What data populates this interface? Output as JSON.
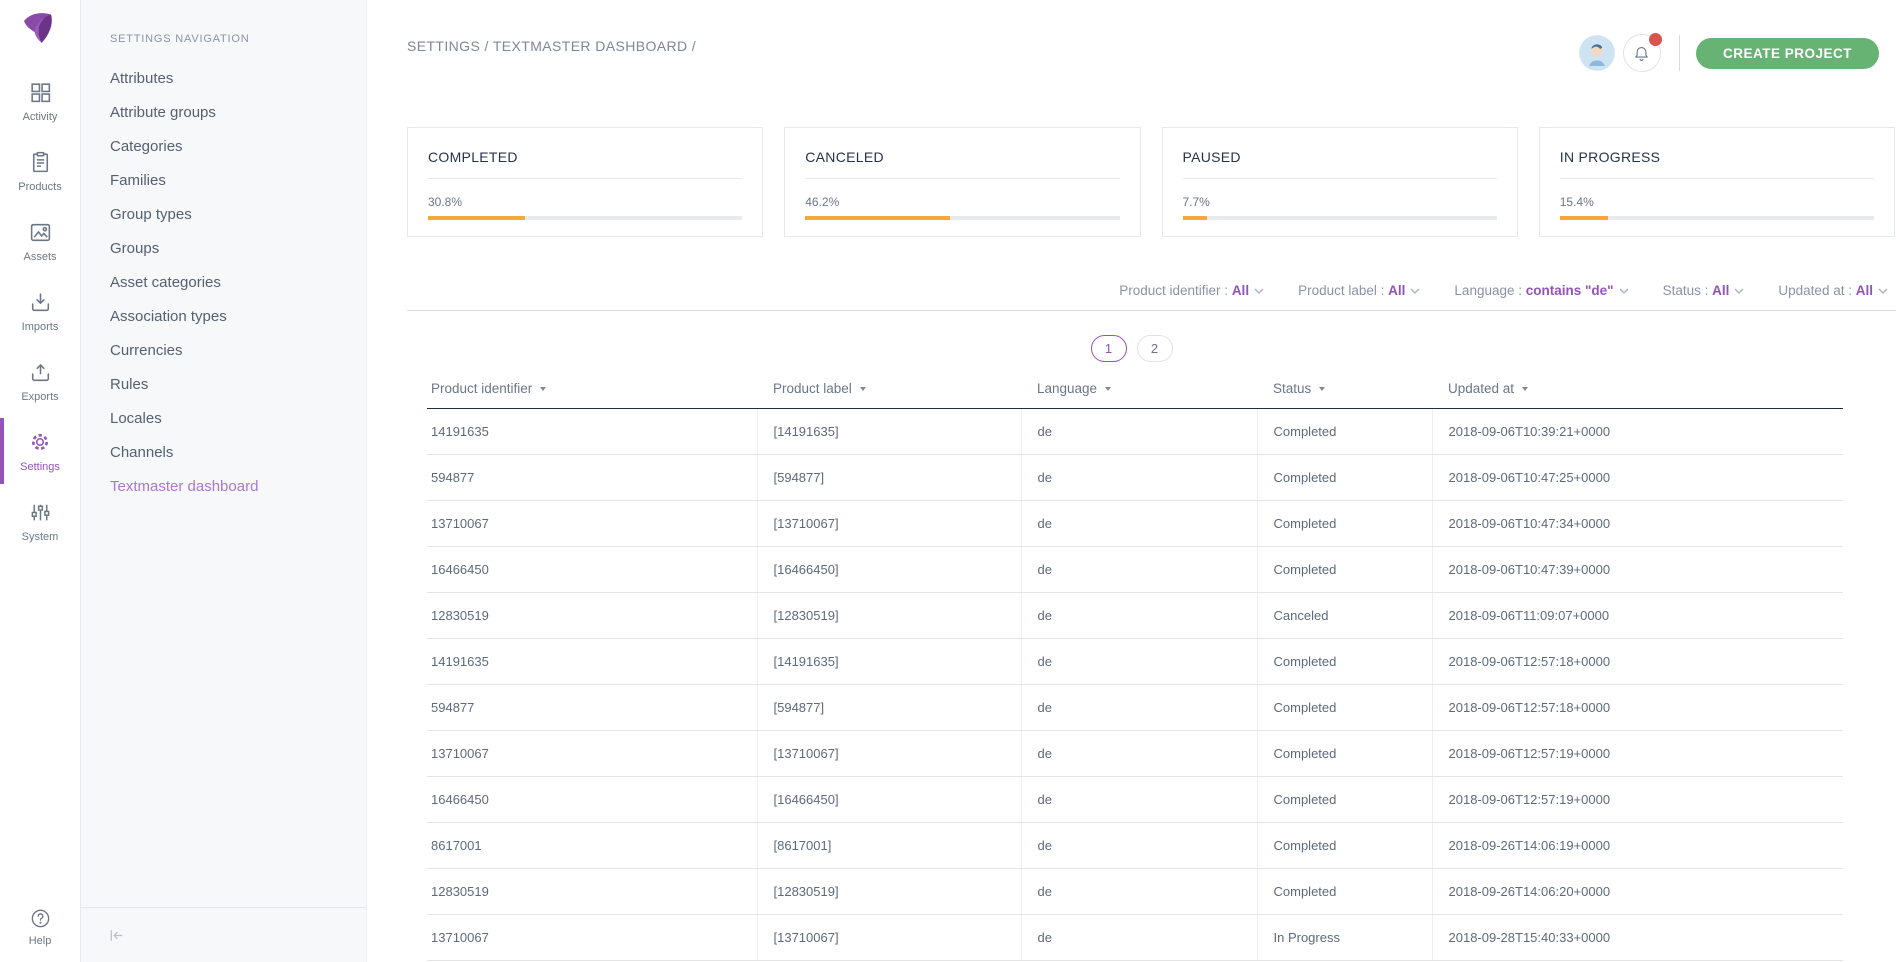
{
  "colors": {
    "accent_purple": "#9452BA",
    "active_link_purple": "#AC77CC",
    "create_button_green": "#67B373",
    "progress_orange": "#F5A93B",
    "notification_red": "#D9534F",
    "table_header_line": "#1F2C44"
  },
  "iconbar": {
    "items": [
      {
        "label": "Activity",
        "icon": "grid-icon",
        "active": false
      },
      {
        "label": "Products",
        "icon": "clipboard-icon",
        "active": false
      },
      {
        "label": "Assets",
        "icon": "image-icon",
        "active": false
      },
      {
        "label": "Imports",
        "icon": "import-icon",
        "active": false
      },
      {
        "label": "Exports",
        "icon": "export-icon",
        "active": false
      },
      {
        "label": "Settings",
        "icon": "gear-icon",
        "active": true
      },
      {
        "label": "System",
        "icon": "sliders-icon",
        "active": false
      }
    ],
    "help": {
      "label": "Help",
      "icon": "question-icon"
    }
  },
  "settings_nav": {
    "title": "SETTINGS NAVIGATION",
    "items": [
      "Attributes",
      "Attribute groups",
      "Categories",
      "Families",
      "Group types",
      "Groups",
      "Asset categories",
      "Association types",
      "Currencies",
      "Rules",
      "Locales",
      "Channels",
      "Textmaster dashboard"
    ],
    "active_item": "Textmaster dashboard"
  },
  "header": {
    "breadcrumb": "SETTINGS / TEXTMASTER DASHBOARD /",
    "create_project_label": "CREATE PROJECT",
    "notification_badge": true
  },
  "stat_cards": [
    {
      "title": "COMPLETED",
      "value": "30.8%",
      "percent": 30.8
    },
    {
      "title": "CANCELED",
      "value": "46.2%",
      "percent": 46.2
    },
    {
      "title": "PAUSED",
      "value": "7.7%",
      "percent": 7.7
    },
    {
      "title": "IN PROGRESS",
      "value": "15.4%",
      "percent": 15.4
    }
  ],
  "filters": [
    {
      "label": "Product identifier",
      "value": "All"
    },
    {
      "label": "Product label",
      "value": "All"
    },
    {
      "label": "Language",
      "value": "contains \"de\""
    },
    {
      "label": "Status",
      "value": "All"
    },
    {
      "label": "Updated at",
      "value": "All"
    }
  ],
  "pagination": {
    "pages": [
      "1",
      "2"
    ],
    "current": "1"
  },
  "table": {
    "columns": [
      "Product identifier",
      "Product label",
      "Language",
      "Status",
      "Updated at"
    ],
    "rows": [
      [
        "14191635",
        "[14191635]",
        "de",
        "Completed",
        "2018-09-06T10:39:21+0000"
      ],
      [
        "594877",
        "[594877]",
        "de",
        "Completed",
        "2018-09-06T10:47:25+0000"
      ],
      [
        "13710067",
        "[13710067]",
        "de",
        "Completed",
        "2018-09-06T10:47:34+0000"
      ],
      [
        "16466450",
        "[16466450]",
        "de",
        "Completed",
        "2018-09-06T10:47:39+0000"
      ],
      [
        "12830519",
        "[12830519]",
        "de",
        "Canceled",
        "2018-09-06T11:09:07+0000"
      ],
      [
        "14191635",
        "[14191635]",
        "de",
        "Completed",
        "2018-09-06T12:57:18+0000"
      ],
      [
        "594877",
        "[594877]",
        "de",
        "Completed",
        "2018-09-06T12:57:18+0000"
      ],
      [
        "13710067",
        "[13710067]",
        "de",
        "Completed",
        "2018-09-06T12:57:19+0000"
      ],
      [
        "16466450",
        "[16466450]",
        "de",
        "Completed",
        "2018-09-06T12:57:19+0000"
      ],
      [
        "8617001",
        "[8617001]",
        "de",
        "Completed",
        "2018-09-26T14:06:19+0000"
      ],
      [
        "12830519",
        "[12830519]",
        "de",
        "Completed",
        "2018-09-26T14:06:20+0000"
      ],
      [
        "13710067",
        "[13710067]",
        "de",
        "In Progress",
        "2018-09-28T15:40:33+0000"
      ]
    ]
  }
}
